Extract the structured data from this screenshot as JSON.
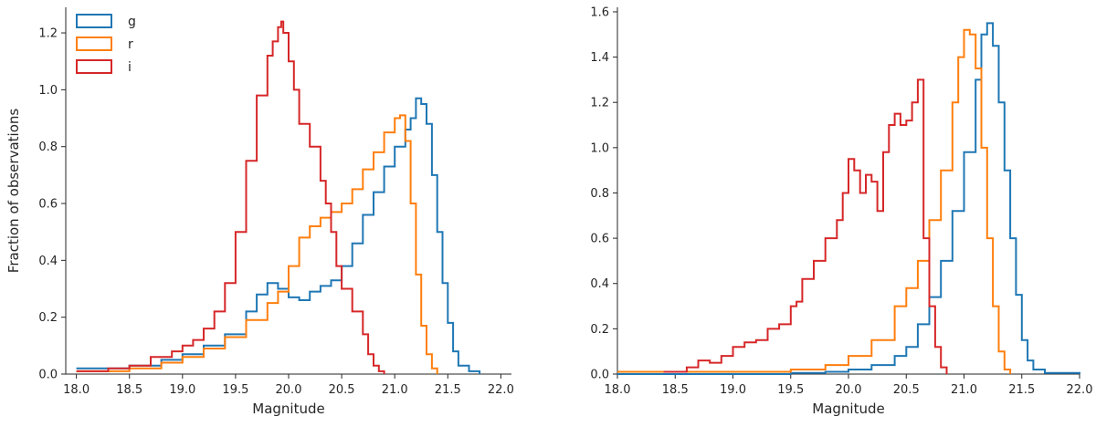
{
  "colors": {
    "g": "#1f77b4",
    "r": "#ff7f0e",
    "i": "#d62728"
  },
  "chart_data": [
    {
      "type": "step",
      "xlabel": "Magnitude",
      "ylabel": "Fraction of observations",
      "xlim": [
        17.9,
        22.1
      ],
      "ylim": [
        0,
        1.29
      ],
      "xticks": [
        "18.0",
        "18.5",
        "19.0",
        "19.5",
        "20.0",
        "20.5",
        "21.0",
        "21.5",
        "22.0"
      ],
      "yticks": [
        "0.0",
        "0.2",
        "0.4",
        "0.6",
        "0.8",
        "1.0",
        "1.2"
      ],
      "legend": {
        "position": "top-left",
        "entries": [
          "g",
          "r",
          "i"
        ]
      },
      "series": [
        {
          "name": "g",
          "color": "#1f77b4",
          "points": [
            [
              18.0,
              0.02
            ],
            [
              18.5,
              0.03
            ],
            [
              18.8,
              0.05
            ],
            [
              19.0,
              0.07
            ],
            [
              19.2,
              0.1
            ],
            [
              19.4,
              0.14
            ],
            [
              19.6,
              0.22
            ],
            [
              19.7,
              0.28
            ],
            [
              19.8,
              0.32
            ],
            [
              19.9,
              0.3
            ],
            [
              20.0,
              0.27
            ],
            [
              20.1,
              0.26
            ],
            [
              20.2,
              0.29
            ],
            [
              20.3,
              0.31
            ],
            [
              20.4,
              0.33
            ],
            [
              20.5,
              0.38
            ],
            [
              20.6,
              0.46
            ],
            [
              20.7,
              0.56
            ],
            [
              20.8,
              0.64
            ],
            [
              20.9,
              0.73
            ],
            [
              21.0,
              0.8
            ],
            [
              21.1,
              0.86
            ],
            [
              21.15,
              0.9
            ],
            [
              21.2,
              0.97
            ],
            [
              21.25,
              0.95
            ],
            [
              21.3,
              0.88
            ],
            [
              21.35,
              0.7
            ],
            [
              21.4,
              0.5
            ],
            [
              21.45,
              0.32
            ],
            [
              21.5,
              0.18
            ],
            [
              21.55,
              0.08
            ],
            [
              21.6,
              0.03
            ],
            [
              21.7,
              0.01
            ],
            [
              21.8,
              0.0
            ]
          ]
        },
        {
          "name": "r",
          "color": "#ff7f0e",
          "points": [
            [
              18.0,
              0.01
            ],
            [
              18.5,
              0.02
            ],
            [
              18.8,
              0.04
            ],
            [
              19.0,
              0.06
            ],
            [
              19.2,
              0.09
            ],
            [
              19.4,
              0.13
            ],
            [
              19.6,
              0.19
            ],
            [
              19.8,
              0.25
            ],
            [
              19.9,
              0.29
            ],
            [
              20.0,
              0.38
            ],
            [
              20.1,
              0.48
            ],
            [
              20.2,
              0.52
            ],
            [
              20.3,
              0.55
            ],
            [
              20.4,
              0.57
            ],
            [
              20.5,
              0.6
            ],
            [
              20.6,
              0.65
            ],
            [
              20.7,
              0.72
            ],
            [
              20.8,
              0.78
            ],
            [
              20.9,
              0.85
            ],
            [
              21.0,
              0.9
            ],
            [
              21.05,
              0.91
            ],
            [
              21.1,
              0.82
            ],
            [
              21.15,
              0.6
            ],
            [
              21.2,
              0.35
            ],
            [
              21.25,
              0.17
            ],
            [
              21.3,
              0.07
            ],
            [
              21.35,
              0.02
            ],
            [
              21.4,
              0.0
            ]
          ]
        },
        {
          "name": "i",
          "color": "#d62728",
          "points": [
            [
              18.0,
              0.01
            ],
            [
              18.3,
              0.02
            ],
            [
              18.5,
              0.03
            ],
            [
              18.7,
              0.06
            ],
            [
              18.9,
              0.08
            ],
            [
              19.0,
              0.1
            ],
            [
              19.1,
              0.12
            ],
            [
              19.2,
              0.16
            ],
            [
              19.3,
              0.22
            ],
            [
              19.4,
              0.32
            ],
            [
              19.5,
              0.5
            ],
            [
              19.6,
              0.75
            ],
            [
              19.7,
              0.98
            ],
            [
              19.8,
              1.12
            ],
            [
              19.85,
              1.17
            ],
            [
              19.9,
              1.22
            ],
            [
              19.93,
              1.24
            ],
            [
              19.95,
              1.2
            ],
            [
              20.0,
              1.1
            ],
            [
              20.05,
              1.0
            ],
            [
              20.1,
              0.88
            ],
            [
              20.2,
              0.8
            ],
            [
              20.3,
              0.68
            ],
            [
              20.35,
              0.6
            ],
            [
              20.4,
              0.5
            ],
            [
              20.45,
              0.38
            ],
            [
              20.5,
              0.3
            ],
            [
              20.6,
              0.22
            ],
            [
              20.7,
              0.14
            ],
            [
              20.75,
              0.07
            ],
            [
              20.8,
              0.03
            ],
            [
              20.85,
              0.01
            ],
            [
              20.9,
              0.0
            ]
          ]
        }
      ]
    },
    {
      "type": "step",
      "xlabel": "Magnitude",
      "ylabel": "",
      "xlim": [
        18.0,
        22.0
      ],
      "ylim": [
        0,
        1.62
      ],
      "xticks": [
        "18.0",
        "18.5",
        "19.0",
        "19.5",
        "20.0",
        "20.5",
        "21.0",
        "21.5",
        "22.0"
      ],
      "yticks": [
        "0.0",
        "0.2",
        "0.4",
        "0.6",
        "0.8",
        "1.0",
        "1.2",
        "1.4",
        "1.6"
      ],
      "series": [
        {
          "name": "g",
          "color": "#1f77b4",
          "points": [
            [
              18.0,
              0.0
            ],
            [
              19.5,
              0.005
            ],
            [
              19.8,
              0.01
            ],
            [
              20.0,
              0.02
            ],
            [
              20.2,
              0.04
            ],
            [
              20.4,
              0.08
            ],
            [
              20.5,
              0.12
            ],
            [
              20.6,
              0.22
            ],
            [
              20.7,
              0.34
            ],
            [
              20.8,
              0.5
            ],
            [
              20.9,
              0.72
            ],
            [
              21.0,
              0.98
            ],
            [
              21.1,
              1.3
            ],
            [
              21.15,
              1.5
            ],
            [
              21.2,
              1.55
            ],
            [
              21.25,
              1.45
            ],
            [
              21.3,
              1.2
            ],
            [
              21.35,
              0.9
            ],
            [
              21.4,
              0.6
            ],
            [
              21.45,
              0.35
            ],
            [
              21.5,
              0.15
            ],
            [
              21.55,
              0.06
            ],
            [
              21.6,
              0.02
            ],
            [
              21.7,
              0.005
            ],
            [
              22.0,
              0.0
            ]
          ]
        },
        {
          "name": "r",
          "color": "#ff7f0e",
          "points": [
            [
              18.0,
              0.01
            ],
            [
              18.5,
              0.01
            ],
            [
              19.0,
              0.01
            ],
            [
              19.5,
              0.02
            ],
            [
              19.8,
              0.04
            ],
            [
              20.0,
              0.08
            ],
            [
              20.2,
              0.15
            ],
            [
              20.4,
              0.3
            ],
            [
              20.5,
              0.38
            ],
            [
              20.6,
              0.5
            ],
            [
              20.7,
              0.68
            ],
            [
              20.8,
              0.9
            ],
            [
              20.9,
              1.2
            ],
            [
              20.95,
              1.4
            ],
            [
              21.0,
              1.52
            ],
            [
              21.05,
              1.5
            ],
            [
              21.1,
              1.35
            ],
            [
              21.15,
              1.0
            ],
            [
              21.2,
              0.6
            ],
            [
              21.25,
              0.3
            ],
            [
              21.3,
              0.1
            ],
            [
              21.35,
              0.02
            ],
            [
              21.4,
              0.0
            ]
          ]
        },
        {
          "name": "i",
          "color": "#d62728",
          "points": [
            [
              18.4,
              0.01
            ],
            [
              18.6,
              0.03
            ],
            [
              18.7,
              0.06
            ],
            [
              18.8,
              0.05
            ],
            [
              18.9,
              0.08
            ],
            [
              19.0,
              0.12
            ],
            [
              19.1,
              0.14
            ],
            [
              19.2,
              0.15
            ],
            [
              19.3,
              0.2
            ],
            [
              19.4,
              0.22
            ],
            [
              19.5,
              0.3
            ],
            [
              19.55,
              0.32
            ],
            [
              19.6,
              0.42
            ],
            [
              19.7,
              0.5
            ],
            [
              19.8,
              0.6
            ],
            [
              19.9,
              0.68
            ],
            [
              19.95,
              0.8
            ],
            [
              20.0,
              0.95
            ],
            [
              20.05,
              0.9
            ],
            [
              20.1,
              0.8
            ],
            [
              20.15,
              0.88
            ],
            [
              20.2,
              0.85
            ],
            [
              20.25,
              0.72
            ],
            [
              20.3,
              0.98
            ],
            [
              20.35,
              1.1
            ],
            [
              20.4,
              1.15
            ],
            [
              20.45,
              1.1
            ],
            [
              20.5,
              1.12
            ],
            [
              20.55,
              1.2
            ],
            [
              20.6,
              1.3
            ],
            [
              20.65,
              0.6
            ],
            [
              20.7,
              0.3
            ],
            [
              20.75,
              0.12
            ],
            [
              20.8,
              0.03
            ],
            [
              20.85,
              0.0
            ]
          ]
        }
      ]
    }
  ]
}
